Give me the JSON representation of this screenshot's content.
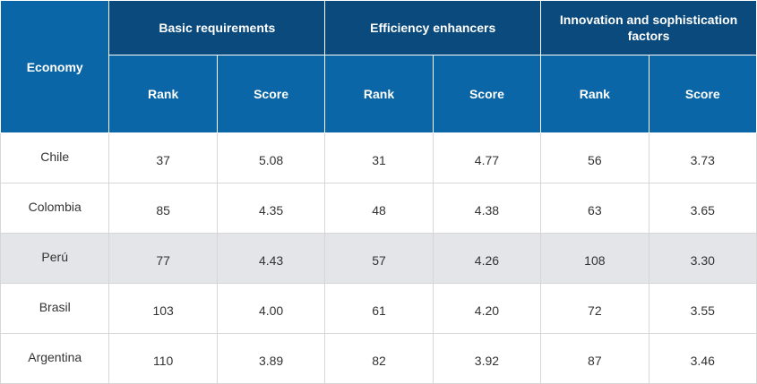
{
  "table": {
    "economy_header": "Economy",
    "groups": [
      "Basic requirements",
      "Efficiency enhancers",
      "Innovation and sophistication factors"
    ],
    "sub_headers": {
      "rank": "Rank",
      "score": "Score"
    },
    "rows": [
      {
        "economy": "Chile",
        "values": [
          "37",
          "5.08",
          "31",
          "4.77",
          "56",
          "3.73"
        ],
        "shaded": false
      },
      {
        "economy": "Colombia",
        "values": [
          "85",
          "4.35",
          "48",
          "4.38",
          "63",
          "3.65"
        ],
        "shaded": false
      },
      {
        "economy": "Perú",
        "values": [
          "77",
          "4.43",
          "57",
          "4.26",
          "108",
          "3.30"
        ],
        "shaded": true
      },
      {
        "economy": "Brasil",
        "values": [
          "103",
          "4.00",
          "61",
          "4.20",
          "72",
          "3.55"
        ],
        "shaded": false
      },
      {
        "economy": "Argentina",
        "values": [
          "110",
          "3.89",
          "82",
          "3.92",
          "87",
          "3.46"
        ],
        "shaded": false
      }
    ],
    "colors": {
      "group_header": "#0a4a7c",
      "sub_header": "#0a66a6",
      "shaded_row": "#e3e5e8"
    }
  }
}
